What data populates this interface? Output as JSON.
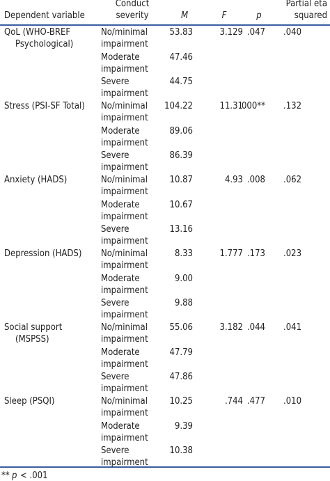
{
  "table": {
    "header": {
      "dependent_variable": "Dependent variable",
      "conduct_severity": [
        "Conduct",
        "severity"
      ],
      "m": "M",
      "f": "F",
      "p": "p",
      "eta": [
        "Partial eta",
        "squared"
      ]
    },
    "rows": [
      {
        "variable": [
          "QoL (WHO-BREF",
          "Psychological)"
        ],
        "f": "3.129",
        "p": ".047",
        "eta": ".040",
        "levels": [
          {
            "severity": [
              "No/minimal",
              "impairment"
            ],
            "m": "53.83"
          },
          {
            "severity": [
              "Moderate",
              "impairment"
            ],
            "m": "47.46"
          },
          {
            "severity": [
              "Severe",
              "impairment"
            ],
            "m": "44.75"
          }
        ]
      },
      {
        "variable": [
          "Stress (PSI-SF Total)"
        ],
        "f": "11.31",
        "p": ".000**",
        "eta": ".132",
        "levels": [
          {
            "severity": [
              "No/minimal",
              "impairment"
            ],
            "m": "104.22"
          },
          {
            "severity": [
              "Moderate",
              "impairment"
            ],
            "m": "89.06"
          },
          {
            "severity": [
              "Severe",
              "impairment"
            ],
            "m": "86.39"
          }
        ]
      },
      {
        "variable": [
          "Anxiety (HADS)"
        ],
        "f": "4.93",
        "p": ".008",
        "eta": ".062",
        "levels": [
          {
            "severity": [
              "No/minimal",
              "impairment"
            ],
            "m": "10.87"
          },
          {
            "severity": [
              "Moderate",
              "impairment"
            ],
            "m": "10.67"
          },
          {
            "severity": [
              "Severe",
              "impairment"
            ],
            "m": "13.16"
          }
        ]
      },
      {
        "variable": [
          "Depression (HADS)"
        ],
        "f": "1.777",
        "p": ".173",
        "eta": ".023",
        "levels": [
          {
            "severity": [
              "No/minimal",
              "impairment"
            ],
            "m": "8.33"
          },
          {
            "severity": [
              "Moderate",
              "impairment"
            ],
            "m": "9.00"
          },
          {
            "severity": [
              "Severe",
              "impairment"
            ],
            "m": "9.88"
          }
        ]
      },
      {
        "variable": [
          "Social support",
          "(MSPSS)"
        ],
        "f": "3.182",
        "p": ".044",
        "eta": ".041",
        "levels": [
          {
            "severity": [
              "No/minimal",
              "impairment"
            ],
            "m": "55.06"
          },
          {
            "severity": [
              "Moderate",
              "impairment"
            ],
            "m": "47.79"
          },
          {
            "severity": [
              "Severe",
              "impairment"
            ],
            "m": "47.86"
          }
        ]
      },
      {
        "variable": [
          "Sleep (PSQI)"
        ],
        "f": ".744",
        "p": ".477",
        "eta": ".010",
        "levels": [
          {
            "severity": [
              "No/minimal",
              "impairment"
            ],
            "m": "10.25"
          },
          {
            "severity": [
              "Moderate",
              "impairment"
            ],
            "m": "9.39"
          },
          {
            "severity": [
              "Severe",
              "impairment"
            ],
            "m": "10.38"
          }
        ]
      }
    ],
    "footnote": {
      "marker": "**",
      "symbol": "p",
      "text": "< .001"
    }
  }
}
